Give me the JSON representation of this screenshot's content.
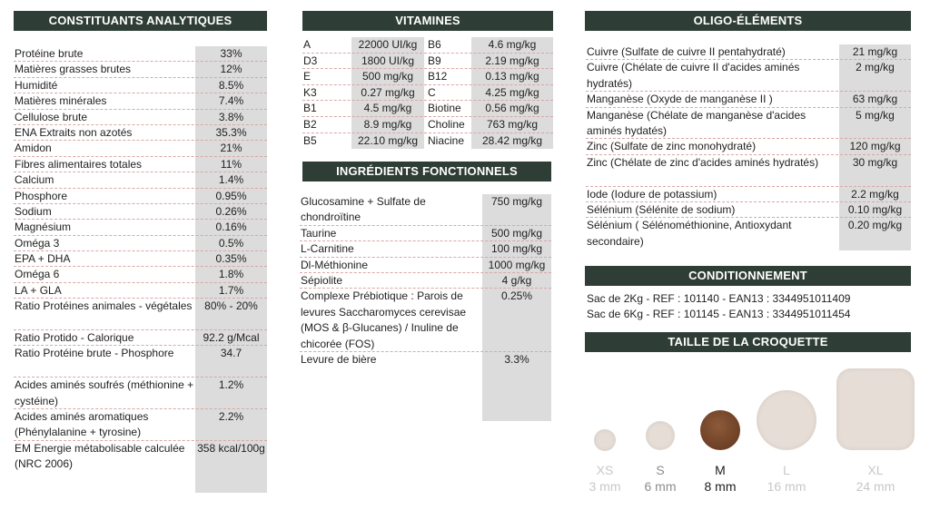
{
  "analytiques": {
    "title": "CONSTITUANTS ANALYTIQUES",
    "rows": [
      {
        "label": "Protéine brute",
        "value": "33%"
      },
      {
        "label": "Matières grasses brutes",
        "value": "12%"
      },
      {
        "label": "Humidité",
        "value": "8.5%"
      },
      {
        "label": "Matières minérales",
        "value": "7.4%"
      },
      {
        "label": "Cellulose brute",
        "value": "3.8%"
      },
      {
        "label": "ENA Extraits non azotés",
        "value": "35.3%"
      },
      {
        "label": "Amidon",
        "value": "21%"
      },
      {
        "label": "Fibres alimentaires totales",
        "value": "11%"
      },
      {
        "label": "Calcium",
        "value": "1.4%"
      },
      {
        "label": "Phosphore",
        "value": "0.95%"
      },
      {
        "label": "Sodium",
        "value": "0.26%"
      },
      {
        "label": "Magnésium",
        "value": "0.16%"
      },
      {
        "label": "Oméga 3",
        "value": "0.5%"
      },
      {
        "label": "EPA + DHA",
        "value": "0.35%"
      },
      {
        "label": "Oméga 6",
        "value": "1.8%"
      },
      {
        "label": "LA + GLA",
        "value": "1.7%"
      },
      {
        "label": "Ratio Protéines animales - végétales",
        "value": "80% - 20%",
        "lines": 2
      },
      {
        "label": "Ratio Protido - Calorique",
        "value": "92.2 g/Mcal"
      },
      {
        "label": "Ratio Protéine brute - Phosphore",
        "value": "34.7",
        "lines": 2
      },
      {
        "label": "Acides aminés soufrés (méthionine + cystéine)",
        "value": "1.2%",
        "lines": 2
      },
      {
        "label": "Acides aminés aromatiques (Phénylalanine + tyrosine)",
        "value": "2.2%",
        "lines": 2
      },
      {
        "label": "EM Energie métabolisable calculée (NRC 2006)",
        "value": "358 kcal/100g",
        "lines": 2,
        "nodash": true
      }
    ]
  },
  "vitamines": {
    "title": "VITAMINES",
    "rows": [
      [
        "A",
        "22000 UI/kg",
        "B6",
        "4.6 mg/kg"
      ],
      [
        "D3",
        "1800 UI/kg",
        "B9",
        "2.19 mg/kg"
      ],
      [
        "E",
        "500 mg/kg",
        "B12",
        "0.13 mg/kg"
      ],
      [
        "K3",
        "0.27 mg/kg",
        "C",
        "4.25 mg/kg"
      ],
      [
        "B1",
        "4.5 mg/kg",
        "Biotine",
        "0.56 mg/kg"
      ],
      [
        "B2",
        "8.9 mg/kg",
        "Choline",
        "763 mg/kg"
      ],
      [
        "B5",
        "22.10 mg/kg",
        "Niacine",
        "28.42 mg/kg"
      ]
    ]
  },
  "ingredients": {
    "title": "INGRÉDIENTS FONCTIONNELS",
    "rows": [
      {
        "label": "Glucosamine + Sulfate de chondroïtine",
        "value": "750 mg/kg",
        "lines": 2
      },
      {
        "label": "Taurine",
        "value": "500 mg/kg"
      },
      {
        "label": "L-Carnitine",
        "value": "100 mg/kg"
      },
      {
        "label": "Dl-Méthionine",
        "value": "1000 mg/kg"
      },
      {
        "label": "Sépiolite",
        "value": "4 g/kg"
      },
      {
        "label": "Complexe Prébiotique : Parois de levures Saccharomyces cerevisae (MOS & β-Glucanes) / Inuline de chicorée (FOS)",
        "value": "0.25%",
        "lines": 4
      },
      {
        "label": "Levure de bière",
        "value": "3.3%",
        "nodash": true
      }
    ]
  },
  "oligo": {
    "title": "OLIGO-ÉLÉMENTS",
    "rows": [
      {
        "label": "Cuivre (Sulfate de cuivre II pentahydraté)",
        "value": "21 mg/kg"
      },
      {
        "label": "Cuivre (Chélate de cuivre II d'acides aminés hydratés)",
        "value": "2 mg/kg",
        "lines": 2
      },
      {
        "label": "Manganèse (Oxyde de manganèse II )",
        "value": "63 mg/kg"
      },
      {
        "label": "Manganèse (Chélate de manganèse d'acides aminés hydatés)",
        "value": "5 mg/kg",
        "lines": 2
      },
      {
        "label": "Zinc (Sulfate de zinc monohydraté)",
        "value": "120 mg/kg"
      },
      {
        "label": "Zinc (Chélate de zinc d'acides aminés hydratés)",
        "value": "30 mg/kg",
        "lines": 2
      },
      {
        "label": "Iode (Iodure de potassium)",
        "value": "2.2 mg/kg"
      },
      {
        "label": "Sélénium (Sélénite de sodium)",
        "value": "0.10 mg/kg"
      },
      {
        "label": "Sélénium ( Sélénométhionine, Antioxydant secondaire)",
        "value": "0.20 mg/kg",
        "lines": 2,
        "nodash": true
      }
    ]
  },
  "conditionnement": {
    "title": "CONDITIONNEMENT",
    "lines": [
      "Sac de 2Kg - REF : 101140 - EAN13 : 3344951011409",
      "Sac de 6Kg - REF : 101145 - EAN13 : 3344951011454"
    ]
  },
  "taille": {
    "title": "TAILLE DE LA CROQUETTE",
    "sizes": [
      {
        "code": "XS",
        "mm": "3 mm",
        "color": "#e6ddd6",
        "text_color": "#c8c8c8"
      },
      {
        "code": "S",
        "mm": "6 mm",
        "color": "#e6ddd6",
        "text_color": "#8c8c8c"
      },
      {
        "code": "M",
        "mm": "8 mm",
        "color": "#7a4a2e",
        "text_color": "#1e1e1e"
      },
      {
        "code": "L",
        "mm": "16 mm",
        "color": "#e6ddd6",
        "text_color": "#c8c8c8"
      },
      {
        "code": "XL",
        "mm": "24 mm",
        "color": "#e6ddd6",
        "text_color": "#c8c8c8"
      }
    ]
  },
  "colors": {
    "header_bg": "#2e3d35",
    "value_bg": "#dcdcdc",
    "dash": "#d9a7a7"
  }
}
